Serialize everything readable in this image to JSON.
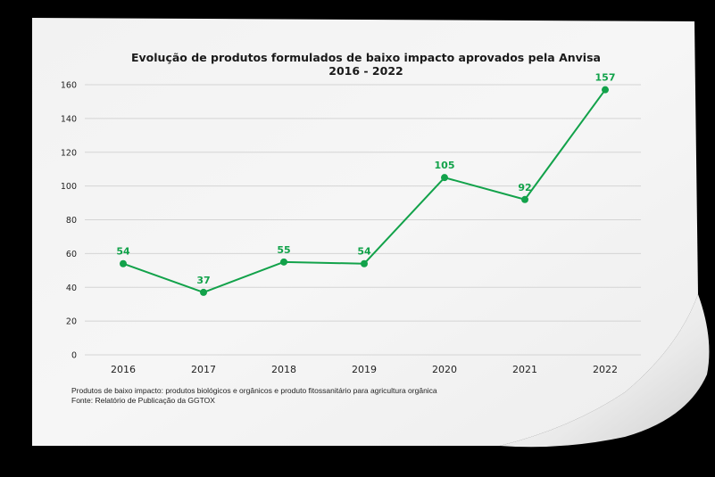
{
  "chart_data": {
    "type": "line",
    "title": "Evolução de produtos formulados de baixo impacto aprovados pela Anvisa",
    "subtitle": "2016 - 2022",
    "categories": [
      "2016",
      "2017",
      "2018",
      "2019",
      "2020",
      "2021",
      "2022"
    ],
    "series": [
      {
        "values": [
          54,
          37,
          55,
          54,
          105,
          92,
          157
        ],
        "color": "#12a24a"
      }
    ],
    "ylim": [
      0,
      160
    ],
    "yticks": [
      "0",
      "20",
      "40",
      "60",
      "80",
      "100",
      "120",
      "140",
      "160"
    ],
    "grid": true,
    "xlabel": "",
    "ylabel": ""
  },
  "notes": {
    "line1": "Produtos de baixo impacto: produtos biológicos e orgânicos e produto fitossanitário para agricultura orgânica",
    "line2": "Fonte: Relatório de Publicação da GGTOX"
  },
  "colors": {
    "background": "#000000",
    "paper": "#f4f4f4",
    "grid": "#d4d4d4",
    "accent": "#12a24a"
  }
}
